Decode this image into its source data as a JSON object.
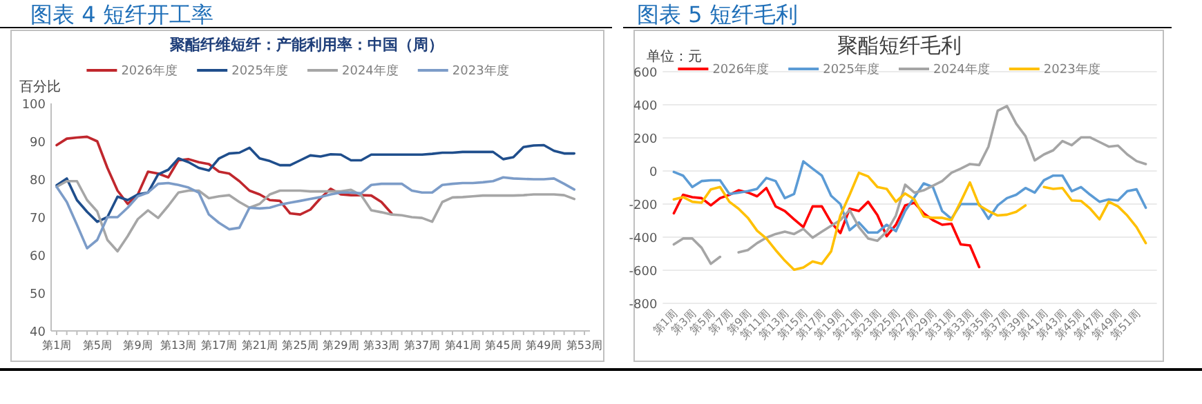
{
  "chart_data": [
    {
      "type": "line",
      "title": "图表 4 短纤开工率",
      "subtitle": "聚酯纤维短纤：产能利用率：中国（周）",
      "ylabel": "百分比",
      "legend": "top",
      "categories": [
        "第1周",
        null,
        null,
        null,
        "第5周",
        null,
        null,
        null,
        "第9周",
        null,
        null,
        null,
        "第13周",
        null,
        null,
        null,
        "第17周",
        null,
        null,
        null,
        "第21周",
        null,
        null,
        null,
        "第25周",
        null,
        null,
        null,
        "第29周",
        null,
        null,
        null,
        "第33周",
        null,
        null,
        null,
        "第37周",
        null,
        null,
        null,
        "第41周",
        null,
        null,
        null,
        "第45周",
        null,
        null,
        null,
        "第49周",
        null,
        null,
        null,
        "第53周"
      ],
      "ylim": [
        40,
        100
      ],
      "yticks": [
        40,
        50,
        60,
        70,
        80,
        90,
        100
      ],
      "series": [
        {
          "name": "2026年度",
          "color": "#c0272d",
          "values": [
            89,
            90.7,
            91,
            91.2,
            90,
            83,
            77,
            73.5,
            76,
            82,
            81.5,
            80.5,
            85,
            85.3,
            84.5,
            84,
            82,
            81.5,
            79.5,
            77,
            76,
            74.5,
            74.3,
            71,
            70.7,
            72,
            75,
            77.5,
            76,
            75.8,
            75.8,
            75.7,
            74,
            71,
            null,
            null,
            null,
            null,
            null,
            null,
            null,
            null,
            null,
            null,
            null,
            null,
            null,
            null,
            null,
            null,
            null,
            null,
            null
          ]
        },
        {
          "name": "2025年度",
          "color": "#1f4e8c",
          "values": [
            78.4,
            80.2,
            74.5,
            71.4,
            68.8,
            70,
            75.4,
            74.5,
            76,
            76.5,
            81.3,
            82.5,
            85.5,
            84.5,
            83,
            82.3,
            85.5,
            86.8,
            87,
            88.3,
            85.5,
            84.8,
            83.7,
            83.7,
            85,
            86.3,
            86,
            86.6,
            86.5,
            85,
            85,
            86.5,
            86.5,
            86.5,
            86.5,
            86.5,
            86.5,
            86.7,
            87,
            87,
            87.2,
            87.2,
            87.2,
            87.2,
            85.3,
            85.8,
            88.5,
            88.9,
            89,
            87.5,
            86.8,
            86.8,
            null
          ]
        },
        {
          "name": "2024年度",
          "color": "#a6a6a6",
          "values": [
            78,
            79.5,
            79.5,
            74.5,
            71.5,
            64,
            61,
            65,
            69.5,
            71.8,
            69.8,
            73,
            76.5,
            77,
            77,
            75,
            75.5,
            75.8,
            74,
            72.5,
            73.5,
            76,
            77,
            77,
            77,
            76.8,
            76.8,
            76.8,
            76.8,
            77.2,
            75.8,
            71.8,
            71.3,
            70.7,
            70.5,
            70,
            69.8,
            68.8,
            74,
            75.2,
            75.3,
            75.5,
            75.7,
            75.7,
            75.7,
            75.7,
            75.8,
            76,
            76,
            76,
            75.8,
            74.8,
            null
          ]
        },
        {
          "name": "2023年度",
          "color": "#7c9cc8",
          "values": [
            78,
            74,
            68,
            61.8,
            64,
            70,
            70,
            72.5,
            75.5,
            76.5,
            78.8,
            79,
            78.5,
            77.8,
            76.5,
            70.7,
            68.5,
            66.8,
            67.2,
            72.5,
            72.3,
            72.5,
            73.3,
            73.8,
            74.3,
            74.8,
            75.3,
            76,
            76.5,
            76.5,
            76.3,
            78.5,
            78.8,
            78.8,
            78.8,
            77,
            76.5,
            76.5,
            78.5,
            78.8,
            79,
            79,
            79.2,
            79.5,
            80.5,
            80.2,
            80.1,
            80,
            80,
            80.2,
            78.8,
            77.3,
            null
          ]
        }
      ]
    },
    {
      "type": "line",
      "title": "图表 5 短纤毛利",
      "subtitle": "聚酯短纤毛利",
      "ylabel": "单位：元",
      "legend": "top",
      "grid": "y",
      "categories": [
        "第1周",
        null,
        "第3周",
        null,
        "第5周",
        null,
        "第7周",
        null,
        "第9周",
        null,
        "第11周",
        null,
        "第13周",
        null,
        "第15周",
        null,
        "第17周",
        null,
        "第19周",
        null,
        "第21周",
        null,
        "第23周",
        null,
        "第25周",
        null,
        "第27周",
        null,
        "第29周",
        null,
        "第31周",
        null,
        "第33周",
        null,
        "第35周",
        null,
        "第37周",
        null,
        "第39周",
        null,
        "第41周",
        null,
        "第43周",
        null,
        "第45周",
        null,
        "第47周",
        null,
        "第49周",
        null,
        "第51周",
        null
      ],
      "ylim": [
        -800,
        600
      ],
      "yticks": [
        -800,
        -600,
        -400,
        -200,
        0,
        200,
        400,
        600
      ],
      "series": [
        {
          "name": "2026年度",
          "color": "#ff0000",
          "values": [
            -256,
            -144,
            -158,
            -164,
            -208,
            -164,
            -144,
            -117,
            -130,
            -153,
            -103,
            -214,
            -242,
            -292,
            -339,
            -214,
            -214,
            -311,
            -375,
            -228,
            -242,
            -186,
            -267,
            -394,
            -325,
            -208,
            -192,
            -256,
            -297,
            -325,
            -319,
            -444,
            -450,
            -581,
            null,
            null,
            null,
            null,
            null,
            null,
            null,
            null,
            null,
            null,
            null,
            null,
            null,
            null,
            null,
            null,
            null,
            null
          ]
        },
        {
          "name": "2025年度",
          "color": "#5b9bd5",
          "values": [
            -6,
            -28,
            -97,
            -61,
            -56,
            -56,
            -139,
            -131,
            -122,
            -108,
            -42,
            -61,
            -164,
            -139,
            58,
            14,
            -28,
            -150,
            -200,
            -358,
            -311,
            -372,
            -372,
            -325,
            -364,
            -242,
            -158,
            -75,
            -97,
            -242,
            -289,
            -200,
            -200,
            -200,
            -289,
            -208,
            -164,
            -144,
            -103,
            -131,
            -56,
            -28,
            -28,
            -122,
            -97,
            -144,
            -186,
            -172,
            -178,
            -122,
            -111,
            -222
          ]
        },
        {
          "name": "2024年度",
          "color": "#a5a5a5",
          "values": [
            -444,
            -408,
            -408,
            -464,
            -561,
            -519,
            null,
            -492,
            -478,
            -436,
            -403,
            -381,
            -367,
            -381,
            -350,
            -403,
            -367,
            -331,
            -297,
            -236,
            -339,
            -408,
            -422,
            -367,
            -269,
            -83,
            -131,
            -117,
            -89,
            -61,
            -11,
            14,
            42,
            36,
            147,
            364,
            392,
            286,
            211,
            64,
            100,
            125,
            181,
            156,
            203,
            203,
            175,
            147,
            153,
            100,
            60,
            42
          ]
        },
        {
          "name": "2023年度",
          "color": "#ffc000",
          "values": [
            -172,
            -158,
            -186,
            -192,
            -111,
            -97,
            -186,
            -228,
            -283,
            -361,
            -408,
            -478,
            -542,
            -597,
            -583,
            -547,
            -561,
            -486,
            -269,
            -144,
            -11,
            -33,
            -97,
            -108,
            -186,
            -136,
            -172,
            -275,
            -283,
            -283,
            -297,
            -186,
            -69,
            -208,
            -242,
            -269,
            -264,
            -247,
            -208,
            null,
            -97,
            -108,
            -103,
            -178,
            -181,
            -228,
            -292,
            -186,
            -214,
            -269,
            -339,
            -436
          ]
        }
      ]
    }
  ]
}
